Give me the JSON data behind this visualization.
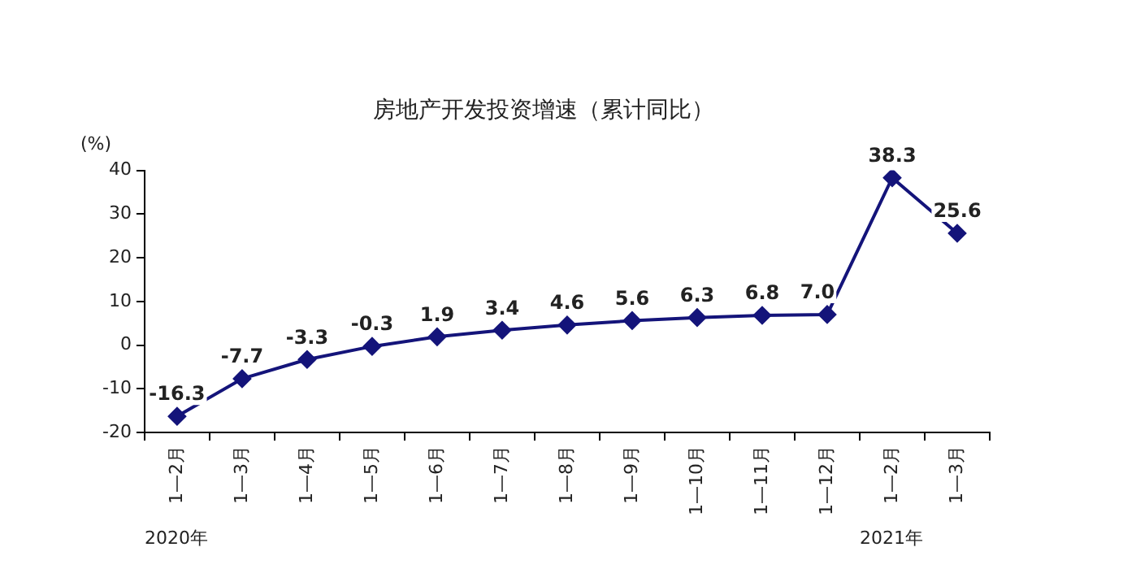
{
  "chart_data": {
    "type": "line",
    "title": "房地产开发投资增速（累计同比）",
    "ylabel": "(%)",
    "categories": [
      "1—2月",
      "1—3月",
      "1—4月",
      "1—5月",
      "1—6月",
      "1—7月",
      "1—8月",
      "1—9月",
      "1—10月",
      "1—11月",
      "1—12月",
      "1—2月",
      "1—3月"
    ],
    "series": [
      {
        "color": "#14147a",
        "values": [
          -16.3,
          -7.7,
          -3.3,
          -0.3,
          1.9,
          3.4,
          4.6,
          5.6,
          6.3,
          6.8,
          7.0,
          38.3,
          25.6
        ],
        "value_labels": [
          "-16.3",
          "-7.7",
          "-3.3",
          "-0.3",
          "1.9",
          "3.4",
          "4.6",
          "5.6",
          "6.3",
          "6.8",
          "7.0",
          "38.3",
          "25.6"
        ]
      }
    ],
    "ylim": [
      -20,
      40
    ],
    "yticks": [
      -20,
      -10,
      0,
      10,
      20,
      30,
      40
    ],
    "grid": false,
    "legend": false,
    "marker": "diamond",
    "line_style": "solid",
    "annotations": [
      "2020年",
      "2021年"
    ]
  }
}
